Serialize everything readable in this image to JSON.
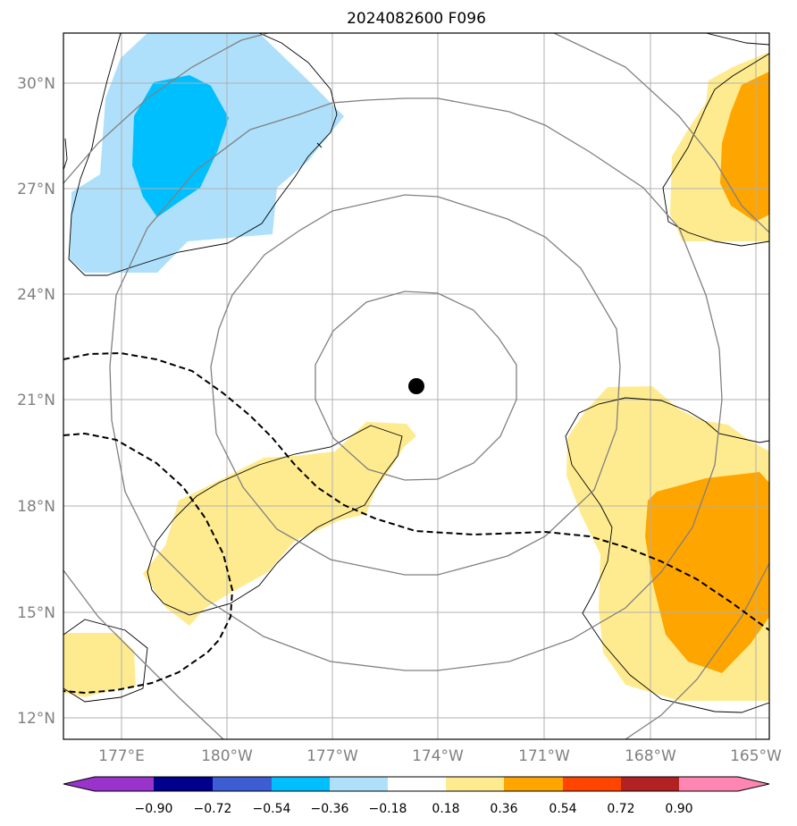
{
  "title": "2024082600 F096",
  "lat_labels": [
    "30°N",
    "27°N",
    "24°N",
    "21°N",
    "18°N",
    "15°N",
    "12°N"
  ],
  "lon_labels": [
    "177°E",
    "180°W",
    "177°W",
    "174°W",
    "171°W",
    "168°W",
    "165°W"
  ],
  "storm_center": {
    "lon": "174°W",
    "lat": "21°N",
    "marker": "filled-circle"
  },
  "colorbar": {
    "ticks": [
      "−0.90",
      "−0.72",
      "−0.54",
      "−0.36",
      "−0.18",
      "0.18",
      "0.36",
      "0.54",
      "0.72",
      "0.90"
    ],
    "colors": [
      "#9933cc",
      "#00008b",
      "#3c5ed2",
      "#00bfff",
      "#aee0fb",
      "#ffffff",
      "#ffeb8f",
      "#ffa500",
      "#ff4500",
      "#b22222",
      "#ff85b3"
    ]
  },
  "colors": {
    "light_blue": "#aee0fb",
    "blue": "#00bfff",
    "light_yellow": "#ffeb8f",
    "orange": "#ffa500",
    "range_rings": "#808080",
    "gridlines": "#b0b0b0"
  }
}
